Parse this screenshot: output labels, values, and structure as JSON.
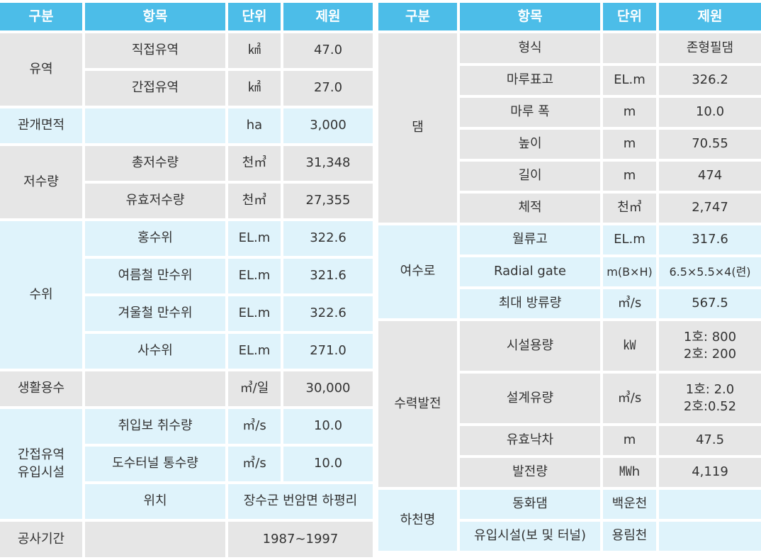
{
  "headers": {
    "category": "구분",
    "item": "항목",
    "unit": "단위",
    "spec": "제원"
  },
  "left": {
    "basin": {
      "label": "유역",
      "direct": {
        "item": "직접유역",
        "unit": "㎢",
        "value": "47.0"
      },
      "indirect": {
        "item": "간접유역",
        "unit": "㎢",
        "value": "27.0"
      }
    },
    "irrigation": {
      "label": "관개면적",
      "item": "",
      "unit": "ha",
      "value": "3,000"
    },
    "storage": {
      "label": "저수량",
      "total": {
        "item": "총저수량",
        "unit": "천㎥",
        "value": "31,348"
      },
      "effective": {
        "item": "유효저수량",
        "unit": "천㎥",
        "value": "27,355"
      }
    },
    "water_level": {
      "label": "수위",
      "flood": {
        "item": "홍수위",
        "unit": "EL.m",
        "value": "322.6"
      },
      "summer": {
        "item": "여름철 만수위",
        "unit": "EL.m",
        "value": "321.6"
      },
      "winter": {
        "item": "겨울철 만수위",
        "unit": "EL.m",
        "value": "322.6"
      },
      "dead": {
        "item": "사수위",
        "unit": "EL.m",
        "value": "271.0"
      }
    },
    "domestic": {
      "label": "생활용수",
      "item": "",
      "unit": "㎥/일",
      "value": "30,000"
    },
    "inflow": {
      "label_line1": "간접유역",
      "label_line2": "유입시설",
      "weir": {
        "item": "취입보 취수량",
        "unit": "㎥/s",
        "value": "10.0"
      },
      "tunnel": {
        "item": "도수터널 통수량",
        "unit": "㎥/s",
        "value": "10.0"
      },
      "location": {
        "item": "위치",
        "value": "장수군 번암면 하평리"
      }
    },
    "period": {
      "label": "공사기간",
      "item": "",
      "value": "1987∼1997"
    }
  },
  "right": {
    "dam": {
      "label": "댐",
      "type": {
        "item": "형식",
        "unit": "",
        "value": "존형필댐"
      },
      "crest_elev": {
        "item": "마루표고",
        "unit": "EL.m",
        "value": "326.2"
      },
      "crest_width": {
        "item": "마루 폭",
        "unit": "m",
        "value": "10.0"
      },
      "height": {
        "item": "높이",
        "unit": "m",
        "value": "70.55"
      },
      "length": {
        "item": "길이",
        "unit": "m",
        "value": "474"
      },
      "volume": {
        "item": "체적",
        "unit": "천㎥",
        "value": "2,747"
      }
    },
    "spillway": {
      "label": "여수로",
      "crest": {
        "item": "월류고",
        "unit": "EL.m",
        "value": "317.6"
      },
      "gate": {
        "item": "Radial gate",
        "unit": "m(B×H)",
        "value": "6.5×5.5×4(련)"
      },
      "max_discharge": {
        "item": "최대 방류량",
        "unit": "㎥/s",
        "value": "567.5"
      }
    },
    "hydro": {
      "label": "수력발전",
      "capacity": {
        "item": "시설용량",
        "unit": "㎾",
        "value_line1": "1호: 800",
        "value_line2": "2호: 200"
      },
      "design_flow": {
        "item": "설계유량",
        "unit": "㎥/s",
        "value_line1": "1호: 2.0",
        "value_line2": "2호:0.52"
      },
      "head": {
        "item": "유효낙차",
        "unit": "m",
        "value": "47.5"
      },
      "generation": {
        "item": "발전량",
        "unit": "㎿h",
        "value": "4,119"
      }
    },
    "river": {
      "label": "하천명",
      "donghwa": {
        "item": "동화댐",
        "unit": "백운천",
        "value": ""
      },
      "inflow": {
        "item": "유입시설(보 및 터널)",
        "unit": "용림천",
        "value": ""
      }
    }
  }
}
